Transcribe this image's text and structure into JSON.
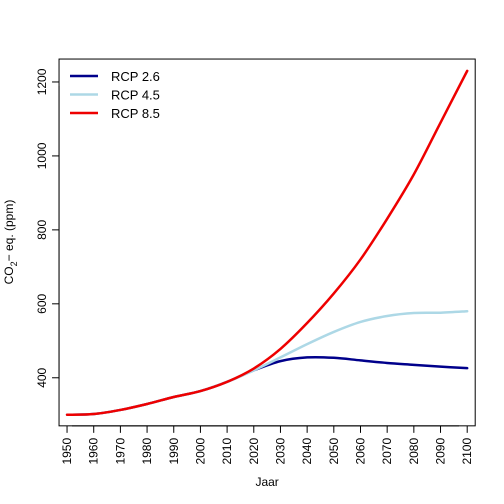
{
  "chart_data": {
    "type": "line",
    "title": "",
    "xlabel": "Jaar",
    "ylabel_main": "CO",
    "ylabel_sub": "2",
    "ylabel_rest": "− eq. (ppm)",
    "xlim": [
      1947,
      2103
    ],
    "ylim": [
      270,
      1262
    ],
    "x_ticks": [
      "1950",
      "1960",
      "1970",
      "1980",
      "1990",
      "2000",
      "2010",
      "2020",
      "2030",
      "2040",
      "2050",
      "2060",
      "2070",
      "2080",
      "2090",
      "2100"
    ],
    "y_ticks": [
      "400",
      "600",
      "800",
      "1000",
      "1200"
    ],
    "legend_position": "top-left",
    "colors": {
      "rcp26": "#00008B",
      "rcp45": "#ADD8E6",
      "rcp85": "#EE0000"
    },
    "series": [
      {
        "name": "RCP 2.6",
        "x": [
          1950,
          1960,
          1970,
          1980,
          1990,
          2000,
          2010,
          2020,
          2030,
          2040,
          2050,
          2060,
          2070,
          2080,
          2090,
          2100
        ],
        "values": [
          300,
          302,
          313,
          329,
          348,
          364,
          389,
          420,
          445,
          455,
          454,
          447,
          440,
          435,
          430,
          426
        ]
      },
      {
        "name": "RCP 4.5",
        "x": [
          1950,
          1960,
          1970,
          1980,
          1990,
          2000,
          2010,
          2020,
          2030,
          2040,
          2050,
          2060,
          2070,
          2080,
          2090,
          2100
        ],
        "values": [
          300,
          302,
          313,
          329,
          348,
          364,
          389,
          420,
          455,
          491,
          524,
          551,
          567,
          575,
          576,
          580
        ]
      },
      {
        "name": "RCP 8.5",
        "x": [
          1950,
          1960,
          1970,
          1980,
          1990,
          2000,
          2010,
          2020,
          2030,
          2040,
          2050,
          2060,
          2070,
          2080,
          2090,
          2100
        ],
        "values": [
          300,
          302,
          313,
          329,
          348,
          364,
          389,
          425,
          478,
          548,
          628,
          720,
          830,
          950,
          1090,
          1230
        ]
      }
    ]
  }
}
